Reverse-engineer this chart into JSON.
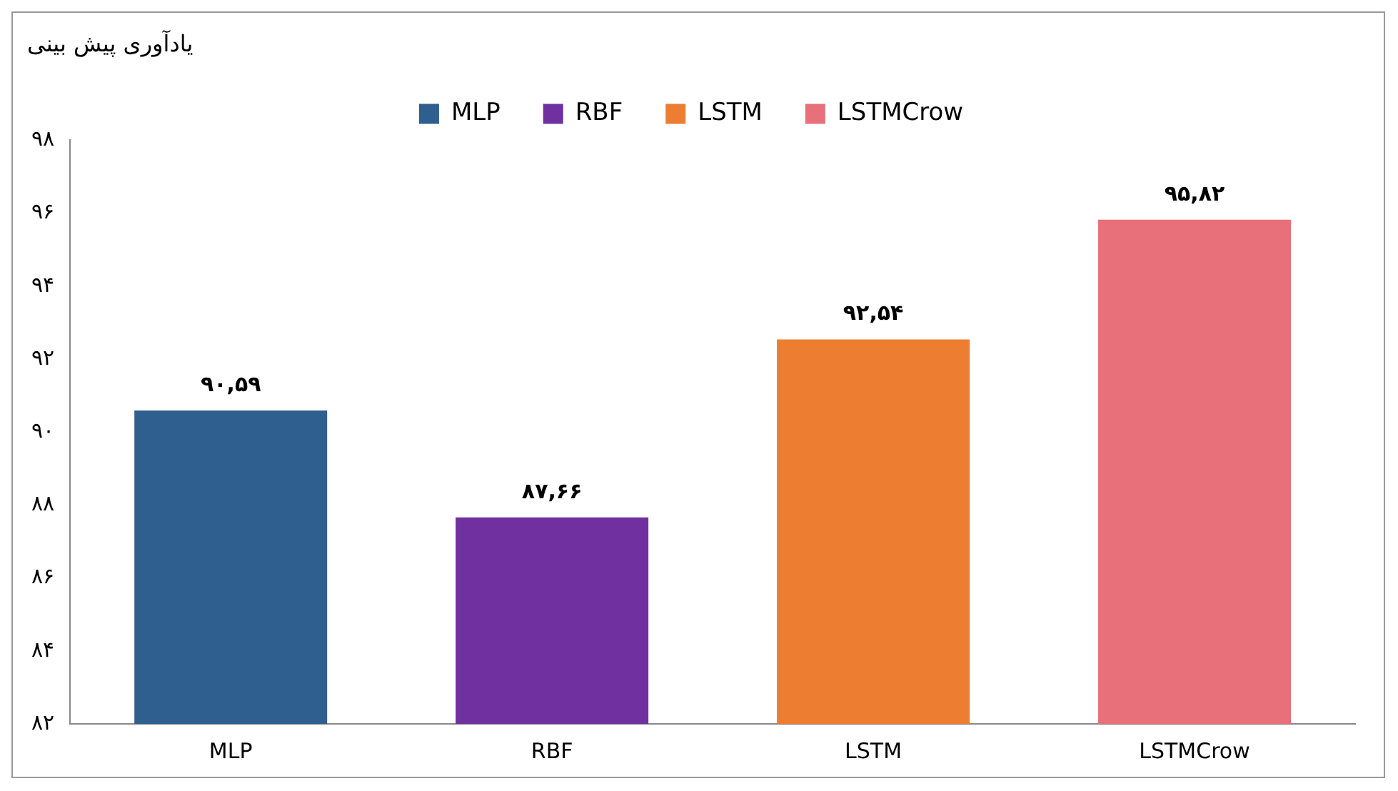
{
  "chart_data": {
    "type": "bar",
    "title": "یادآوری پیش بینی",
    "categories": [
      "MLP",
      "RBF",
      "LSTM",
      "LSTMCrow"
    ],
    "series": [
      {
        "name": "MLP",
        "color": "#2f5f8f",
        "values": [
          90.59,
          null,
          null,
          null
        ],
        "value_labels": [
          "۹۰,۵۹",
          null,
          null,
          null
        ]
      },
      {
        "name": "RBF",
        "color": "#7030a0",
        "values": [
          null,
          87.66,
          null,
          null
        ],
        "value_labels": [
          null,
          "۸۷,۶۶",
          null,
          null
        ]
      },
      {
        "name": "LSTM",
        "color": "#ed7d31",
        "values": [
          null,
          null,
          92.54,
          null
        ],
        "value_labels": [
          null,
          null,
          "۹۲,۵۴",
          null
        ]
      },
      {
        "name": "LSTMCrow",
        "color": "#e8707a",
        "values": [
          null,
          null,
          null,
          95.82
        ],
        "value_labels": [
          null,
          null,
          null,
          "۹۵,۸۲"
        ]
      }
    ],
    "ylim": [
      82,
      98
    ],
    "yticks": [
      {
        "value": 82,
        "label": "۸۲"
      },
      {
        "value": 84,
        "label": "۸۴"
      },
      {
        "value": 86,
        "label": "۸۶"
      },
      {
        "value": 88,
        "label": "۸۸"
      },
      {
        "value": 90,
        "label": "۹۰"
      },
      {
        "value": 92,
        "label": "۹۲"
      },
      {
        "value": 94,
        "label": "۹۴"
      },
      {
        "value": 96,
        "label": "۹۶"
      },
      {
        "value": 98,
        "label": "۹۸"
      }
    ],
    "grid": false,
    "legend": "top"
  }
}
